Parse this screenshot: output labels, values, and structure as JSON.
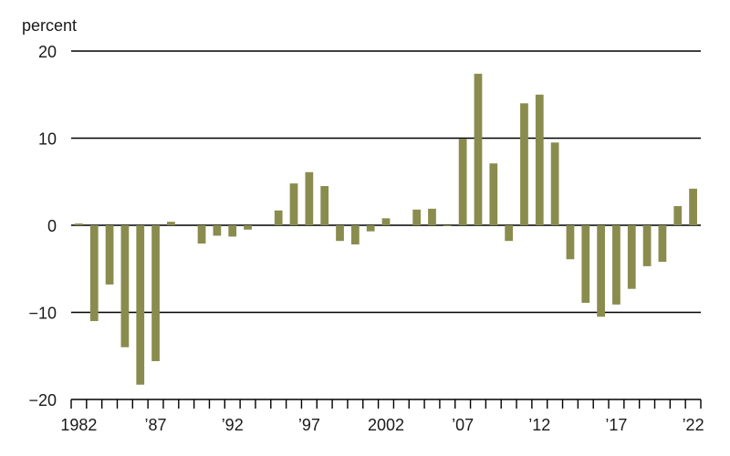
{
  "chart_data": {
    "type": "bar",
    "y_unit_label": "percent",
    "ylim": [
      -20,
      20
    ],
    "y_ticks": [
      20,
      10,
      0,
      -10,
      -20
    ],
    "y_tick_labels": [
      "20",
      "10",
      "0",
      "−10",
      "−20"
    ],
    "grid": "horizontal",
    "bar_color": "#8a8c4e",
    "categories": [
      1982,
      1983,
      1984,
      1985,
      1986,
      1987,
      1988,
      1989,
      1990,
      1991,
      1992,
      1993,
      1994,
      1995,
      1996,
      1997,
      1998,
      1999,
      2000,
      2001,
      2002,
      2003,
      2004,
      2005,
      2006,
      2007,
      2008,
      2009,
      2010,
      2011,
      2012,
      2013,
      2014,
      2015,
      2016,
      2017,
      2018,
      2019,
      2020,
      2021,
      2022
    ],
    "values": [
      0.2,
      -11.0,
      -6.8,
      -14.0,
      -18.3,
      -15.6,
      0.4,
      0,
      -2.1,
      -1.2,
      -1.3,
      -0.5,
      0,
      1.7,
      4.8,
      6.1,
      4.5,
      -1.8,
      -2.2,
      -0.7,
      0.8,
      0,
      1.8,
      1.9,
      -0.1,
      9.9,
      17.4,
      7.1,
      -1.8,
      14.0,
      15.0,
      9.5,
      -3.9,
      -8.9,
      -10.5,
      -9.1,
      -7.3,
      -4.7,
      -4.2,
      2.2,
      4.2
    ],
    "x_tick_labels": [
      {
        "year": 1982,
        "label": "1982"
      },
      {
        "year": 1987,
        "label": "’87"
      },
      {
        "year": 1992,
        "label": "’92"
      },
      {
        "year": 1997,
        "label": "’97"
      },
      {
        "year": 2002,
        "label": "2002"
      },
      {
        "year": 2007,
        "label": "’07"
      },
      {
        "year": 2012,
        "label": "’12"
      },
      {
        "year": 2017,
        "label": "’17"
      },
      {
        "year": 2022,
        "label": "’22"
      }
    ]
  }
}
